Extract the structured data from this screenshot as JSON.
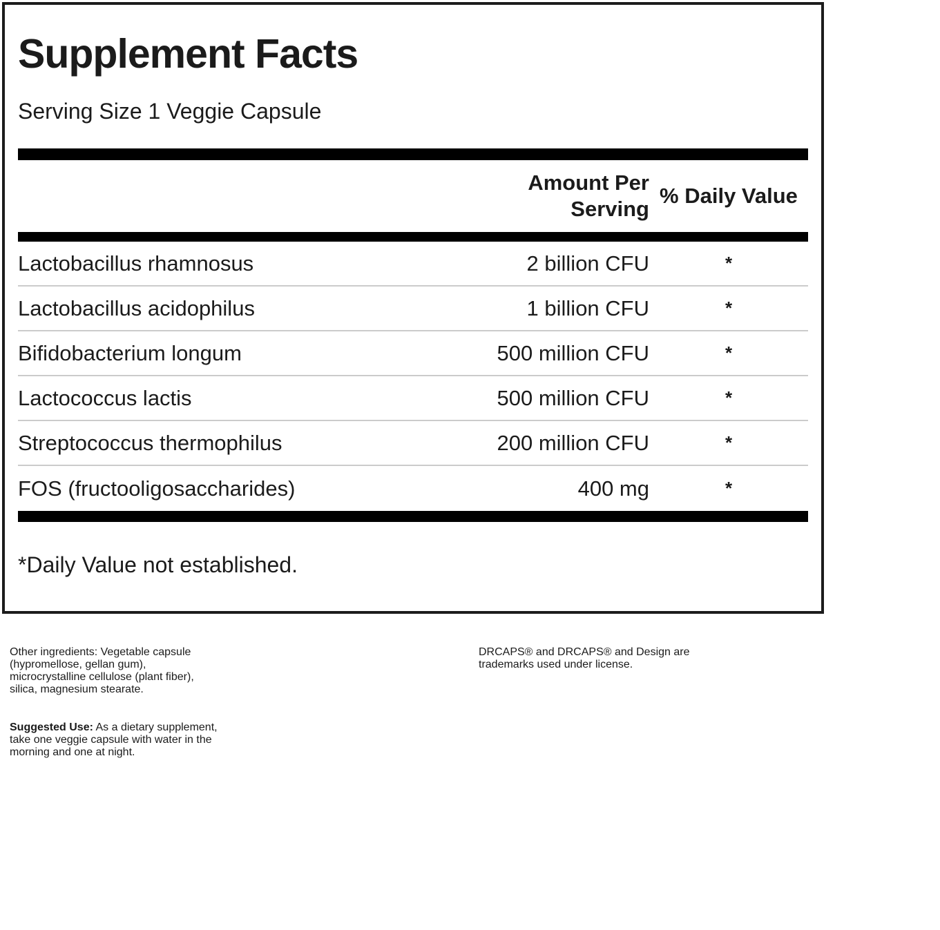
{
  "label": {
    "title": "Supplement Facts",
    "serving_size": "Serving Size 1 Veggie Capsule",
    "header": {
      "amount_line1": "Amount Per",
      "amount_line2": "Serving",
      "daily_value": "% Daily Value"
    },
    "rows": [
      {
        "name": "Lactobacillus rhamnosus",
        "amount": "2 billion CFU",
        "daily_value": "*"
      },
      {
        "name": "Lactobacillus acidophilus",
        "amount": "1 billion CFU",
        "daily_value": "*"
      },
      {
        "name": "Bifidobacterium longum",
        "amount": "500 million CFU",
        "daily_value": "*"
      },
      {
        "name": "Lactococcus lactis",
        "amount": "500 million CFU",
        "daily_value": "*"
      },
      {
        "name": "Streptococcus thermophilus",
        "amount": "200 million CFU",
        "daily_value": "*"
      },
      {
        "name": "FOS (fructooligosaccharides)",
        "amount": "400 mg",
        "daily_value": "*"
      }
    ],
    "footnote": "*Daily Value not established."
  },
  "other_ingredients": {
    "lines": [
      "Other ingredients: Vegetable capsule",
      "(hypromellose, gellan gum),",
      "microcrystalline cellulose (plant fiber),",
      "silica, magnesium stearate."
    ]
  },
  "trademark_notice": {
    "lines": [
      "DRCAPS® and DRCAPS® and Design are",
      "trademarks used under license."
    ]
  },
  "suggested_use": {
    "label": "Suggested Use:",
    "line1_rest": " As a dietary supplement,",
    "line2": "take one veggie capsule with water in the",
    "line3": "morning and one at night."
  },
  "colors": {
    "text": "#1b1b1b",
    "bar": "#000000",
    "row_divider": "#cbcbcb",
    "panel_border": "#1c1c1c",
    "background": "#ffffff"
  }
}
